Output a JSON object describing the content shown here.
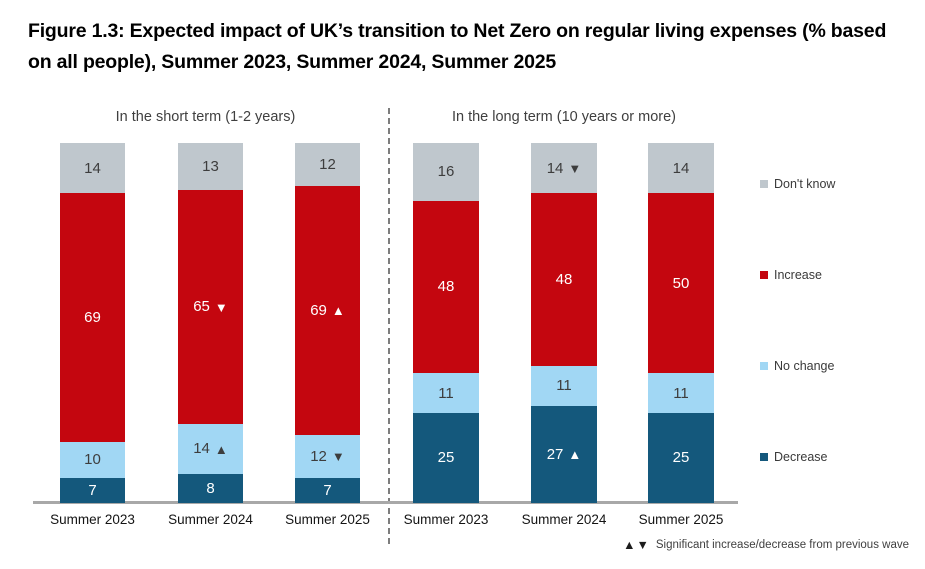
{
  "figure": {
    "title": "Figure 1.3: Expected impact of UK’s transition to Net Zero on regular living expenses (% based on all people), Summer 2023, Summer 2024, Summer 2025"
  },
  "colors": {
    "dont_know": "#bfc7cd",
    "increase": "#c4060f",
    "no_change": "#a1d7f4",
    "decrease": "#14587c",
    "axis": "#a8a8a8",
    "divider": "#7d7d7d",
    "label_dark": "#3d3d3d",
    "label_light": "#ffffff"
  },
  "legend": {
    "items": [
      {
        "label": "Don't know",
        "color_key": "dont_know"
      },
      {
        "label": "Increase",
        "color_key": "increase"
      },
      {
        "label": "No change",
        "color_key": "no_change"
      },
      {
        "label": "Decrease",
        "color_key": "decrease"
      }
    ]
  },
  "footnote": {
    "symbols": "▲▼",
    "text": "Significant increase/decrease from previous wave"
  },
  "chart_data": {
    "type": "bar",
    "stacked": true,
    "ylim": [
      0,
      100
    ],
    "grid": false,
    "legend_position": "right",
    "stack_order_bottom_to_top": [
      "Decrease",
      "No change",
      "Increase",
      "Don't know"
    ],
    "panels": [
      {
        "title": "In the short term (1-2 years)",
        "categories": [
          "Summer 2023",
          "Summer 2024",
          "Summer 2025"
        ],
        "series": [
          {
            "name": "Decrease",
            "color_key": "decrease",
            "values": [
              7,
              8,
              7
            ],
            "arrows": [
              null,
              null,
              null
            ]
          },
          {
            "name": "No change",
            "color_key": "no_change",
            "values": [
              10,
              14,
              12
            ],
            "arrows": [
              null,
              "up",
              "down"
            ]
          },
          {
            "name": "Increase",
            "color_key": "increase",
            "values": [
              69,
              65,
              69
            ],
            "arrows": [
              null,
              "down",
              "up"
            ]
          },
          {
            "name": "Don't know",
            "color_key": "dont_know",
            "values": [
              14,
              13,
              12
            ],
            "arrows": [
              null,
              null,
              null
            ]
          }
        ]
      },
      {
        "title": "In the long term (10 years or more)",
        "categories": [
          "Summer 2023",
          "Summer 2024",
          "Summer 2025"
        ],
        "series": [
          {
            "name": "Decrease",
            "color_key": "decrease",
            "values": [
              25,
              27,
              25
            ],
            "arrows": [
              null,
              "up",
              null
            ]
          },
          {
            "name": "No change",
            "color_key": "no_change",
            "values": [
              11,
              11,
              11
            ],
            "arrows": [
              null,
              null,
              null
            ]
          },
          {
            "name": "Increase",
            "color_key": "increase",
            "values": [
              48,
              48,
              50
            ],
            "arrows": [
              null,
              null,
              null
            ]
          },
          {
            "name": "Don't know",
            "color_key": "dont_know",
            "values": [
              16,
              14,
              14
            ],
            "arrows": [
              null,
              "down",
              null
            ]
          }
        ]
      }
    ]
  }
}
